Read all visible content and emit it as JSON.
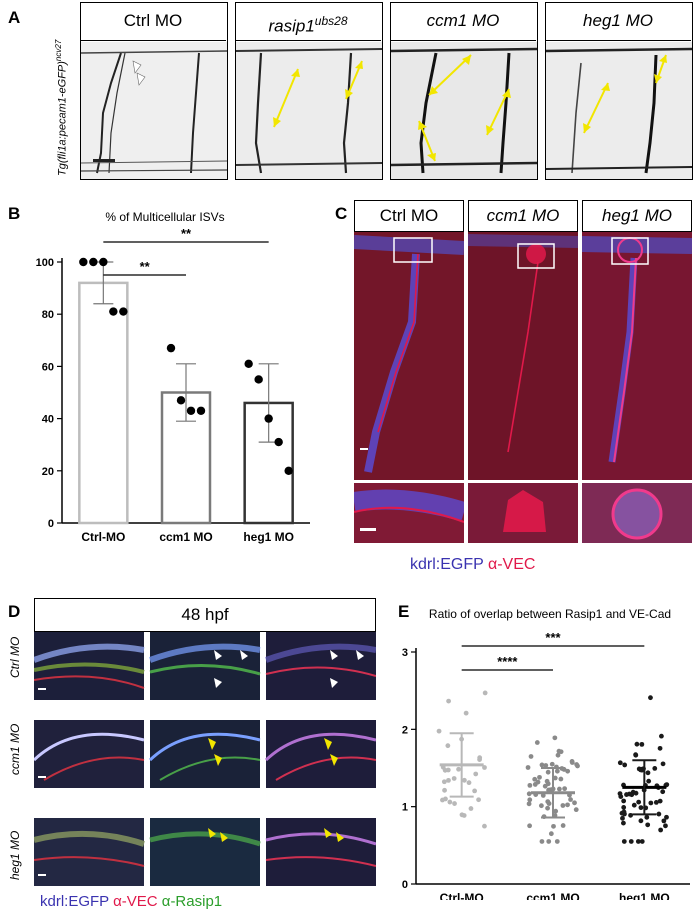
{
  "panelA": {
    "letter": "A",
    "ylabel": "Tg(fli1a:pecam1-eGFP)",
    "ylabel_sup": "ncv27",
    "panels": [
      "Ctrl MO",
      "rasip1",
      "ccm1 MO",
      "heg1 MO"
    ],
    "rasip_sup": "ubs28",
    "arrow_color": "#f2e600"
  },
  "panelB": {
    "letter": "B",
    "chart_data": {
      "type": "bar",
      "title": "% of Multicellular ISVs",
      "categories": [
        "Ctrl-MO",
        "ccm1 MO",
        "heg1 MO"
      ],
      "values": [
        92,
        50,
        46
      ],
      "errors": [
        8,
        11,
        15
      ],
      "points": [
        [
          100,
          100,
          100,
          81,
          81
        ],
        [
          67,
          47,
          43,
          43
        ],
        [
          61,
          55,
          40,
          31,
          20
        ]
      ],
      "ylim": [
        0,
        100
      ],
      "yticks": [
        0,
        20,
        40,
        60,
        80,
        100
      ],
      "significance": [
        "**",
        "**"
      ],
      "bar_colors": [
        "#bdbdbd",
        "#7a7a7a",
        "#333333"
      ]
    }
  },
  "panelC": {
    "letter": "C",
    "panels": [
      "Ctrl MO",
      "ccm1 MO",
      "heg1 MO"
    ],
    "legend_green": "kdrl:EGFP",
    "legend_red": "α-VEC",
    "color_blue": "#3a33b0",
    "color_red": "#e0194a"
  },
  "panelD": {
    "letter": "D",
    "header": "48 hpf",
    "rows": [
      "Ctrl MO",
      "ccm1 MO",
      "heg1 MO"
    ],
    "legend_blue": "kdrl:EGFP",
    "legend_red": "α-VEC",
    "legend_green": "α-Rasip1",
    "color_green": "#2b9e2b"
  },
  "panelE": {
    "letter": "E",
    "chart_data": {
      "type": "scatter",
      "title": "Ratio of overlap between Rasip1 and VE-Cad",
      "categories": [
        "Ctrl-MO",
        "ccm1 MO",
        "heg1 MO"
      ],
      "means": [
        1.54,
        1.18,
        1.25
      ],
      "sd": [
        0.41,
        0.32,
        0.35
      ],
      "ylim": [
        0,
        3
      ],
      "yticks": [
        0,
        1,
        2,
        3
      ],
      "significance": [
        "****",
        "***"
      ],
      "point_colors": [
        "#b8b8b8",
        "#8a8a8a",
        "#1a1a1a"
      ]
    }
  }
}
